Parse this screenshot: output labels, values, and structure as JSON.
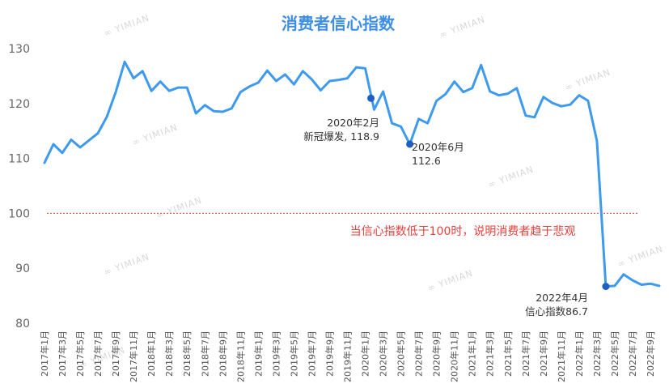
{
  "chart_data": {
    "type": "line",
    "title": "消费者信心指数",
    "xlabel": "",
    "ylabel": "",
    "ylim": [
      80,
      130
    ],
    "yticks": [
      80,
      90,
      100,
      110,
      120,
      130
    ],
    "grid": false,
    "start_year": 2017,
    "start_month": 1,
    "values": [
      109.2,
      112.6,
      111.0,
      113.4,
      112.0,
      113.3,
      114.6,
      117.6,
      122.1,
      127.6,
      124.6,
      125.9,
      122.3,
      124.0,
      122.3,
      122.9,
      122.9,
      118.2,
      119.7,
      118.6,
      118.5,
      119.1,
      122.1,
      123.1,
      123.8,
      126.0,
      124.1,
      125.3,
      123.5,
      125.9,
      124.4,
      122.4,
      124.1,
      124.3,
      124.6,
      126.6,
      126.4,
      118.9,
      122.2,
      116.4,
      115.8,
      112.6,
      117.2,
      116.4,
      120.5,
      121.7,
      124.0,
      122.1,
      122.8,
      127.0,
      122.2,
      121.5,
      121.8,
      122.8,
      117.8,
      117.5,
      121.2,
      120.1,
      119.5,
      119.8,
      121.5,
      120.5,
      113.2,
      86.7,
      86.8,
      88.9,
      87.8,
      87.0,
      87.2,
      86.8
    ],
    "xtick_labels": [
      "2017年1月",
      "2017年3月",
      "2017年5月",
      "2017年7月",
      "2017年9月",
      "2017年11月",
      "2018年1月",
      "2018年3月",
      "2018年5月",
      "2018年7月",
      "2018年9月",
      "2018年11月",
      "2019年1月",
      "2019年3月",
      "2019年5月",
      "2019年7月",
      "2019年9月",
      "2019年11月",
      "2020年1月",
      "2020年3月",
      "2020年5月",
      "2020年7月",
      "2020年9月",
      "2020年11月",
      "2021年1月",
      "2021年3月",
      "2021年5月",
      "2021年7月",
      "2021年9月",
      "2021年11月",
      "2022年1月",
      "2022年3月",
      "2022年5月",
      "2022年7月",
      "2022年9月"
    ],
    "reference_line": {
      "y": 100,
      "color": "#e8413c"
    },
    "annotations": [
      {
        "index": 37,
        "value": 118.9,
        "lines": [
          "2020年2月",
          "新冠爆发, 118.9"
        ]
      },
      {
        "index": 41,
        "value": 112.6,
        "lines": [
          "2020年6月",
          "112.6"
        ]
      },
      {
        "index": 63,
        "value": 86.7,
        "lines": [
          "2022年4月",
          "信心指数86.7"
        ]
      }
    ],
    "note": "当信心指数低于100时，说明消费者趋于悲观",
    "colors": {
      "line": "#3d9aee",
      "marker": "#1f5fc4",
      "title": "#3d8ee8",
      "note": "#e8413c"
    }
  },
  "watermark": "YIMIAN"
}
